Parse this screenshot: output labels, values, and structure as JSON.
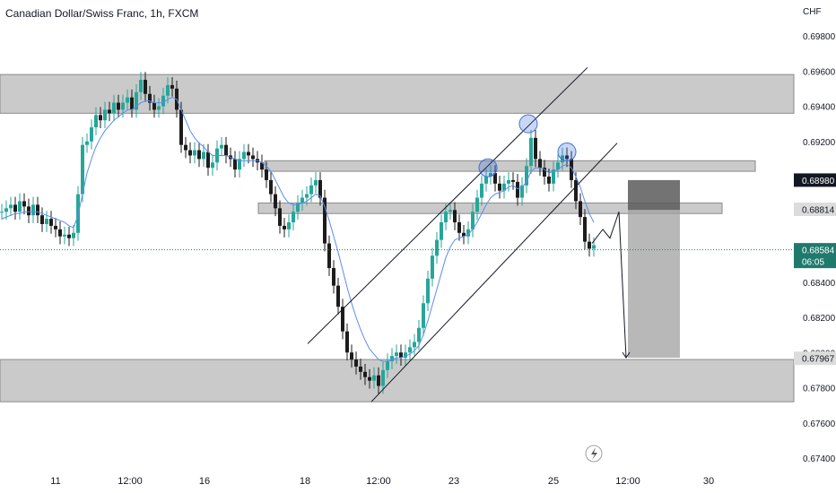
{
  "header": {
    "symbol_title": "Canadian Dollar/Swiss Franc, 1h, FXCM",
    "currency": "CHF"
  },
  "chart_data": {
    "type": "line",
    "title": "Canadian Dollar/Swiss Franc, 1h, FXCM",
    "ylabel": "CHF",
    "ylim": [
      0.673,
      0.699
    ],
    "y_ticks": [
      "0.69800",
      "0.69600",
      "0.69400",
      "0.69200",
      "0.68800",
      "0.68400",
      "0.68200",
      "0.68000",
      "0.67800",
      "0.67600",
      "0.67400"
    ],
    "x_ticks": [
      "11",
      "12:00",
      "16",
      "18",
      "12:00",
      "23",
      "25",
      "12:00",
      "30"
    ],
    "colors": {
      "bull": "#26a69a",
      "bear": "#1c1c1c",
      "ma": "#5b8def",
      "zone": "#9e9e9e",
      "drawing": "#131722",
      "circle": "#3f6fd8",
      "last_price": "#1f7a6c"
    },
    "series": [
      {
        "x": [
          0,
          5,
          10,
          15,
          20,
          25,
          30,
          35,
          40,
          45,
          50,
          55,
          60,
          65,
          70,
          75,
          80,
          85,
          90,
          95,
          100,
          105,
          110,
          115,
          120,
          125,
          130,
          135,
          140,
          145,
          150,
          155,
          160,
          165,
          170,
          175,
          180,
          185,
          190,
          195,
          200,
          205,
          210,
          215,
          220,
          225,
          230,
          235,
          240,
          245,
          250,
          255,
          260,
          265,
          270,
          275,
          280,
          285,
          290,
          295,
          300,
          305,
          310,
          315,
          320,
          325,
          330,
          335,
          340,
          345,
          350,
          355,
          360,
          365,
          370,
          375,
          380,
          385,
          390,
          395,
          400,
          405,
          410,
          415,
          420,
          425,
          430,
          435,
          440,
          445,
          450,
          455,
          460,
          465,
          470,
          475,
          480,
          485,
          490,
          495,
          500,
          505,
          510,
          515,
          520,
          525,
          530,
          535,
          540,
          545,
          550,
          555,
          560,
          565,
          570,
          575,
          580,
          585,
          590,
          595,
          600,
          605,
          610,
          615,
          620,
          625,
          630,
          635,
          640,
          645,
          650,
          655,
          660
        ],
        "values": [
          0.688,
          0.6882,
          0.6884,
          0.688,
          0.6886,
          0.6883,
          0.6878,
          0.6884,
          0.6878,
          0.6873,
          0.6876,
          0.6872,
          0.687,
          0.6866,
          0.6867,
          0.6865,
          0.6868,
          0.689,
          0.6918,
          0.692,
          0.6928,
          0.6935,
          0.6932,
          0.6938,
          0.6936,
          0.6942,
          0.6938,
          0.6942,
          0.6945,
          0.6938,
          0.6948,
          0.6955,
          0.6947,
          0.6942,
          0.6938,
          0.694,
          0.6946,
          0.6952,
          0.695,
          0.6938,
          0.6918,
          0.6915,
          0.6912,
          0.6915,
          0.691,
          0.6914,
          0.6905,
          0.6908,
          0.6916,
          0.6918,
          0.6912,
          0.691,
          0.6904,
          0.691,
          0.6914,
          0.6912,
          0.691,
          0.6908,
          0.6904,
          0.6898,
          0.689,
          0.6882,
          0.6872,
          0.687,
          0.6874,
          0.688,
          0.6885,
          0.6888,
          0.689,
          0.6895,
          0.6898,
          0.6888,
          0.6862,
          0.6848,
          0.6838,
          0.6826,
          0.6812,
          0.68,
          0.6796,
          0.6792,
          0.6789,
          0.6786,
          0.6784,
          0.6787,
          0.6781,
          0.679,
          0.6795,
          0.6798,
          0.68,
          0.6797,
          0.68,
          0.6803,
          0.6806,
          0.6814,
          0.6828,
          0.6842,
          0.6855,
          0.6864,
          0.6874,
          0.688,
          0.6881,
          0.6874,
          0.6868,
          0.6866,
          0.687,
          0.688,
          0.6888,
          0.6896,
          0.69,
          0.6902,
          0.6896,
          0.6892,
          0.6896,
          0.6898,
          0.6897,
          0.6888,
          0.6895,
          0.6906,
          0.6922,
          0.691,
          0.6905,
          0.69,
          0.6896,
          0.6904,
          0.6908,
          0.6912,
          0.691,
          0.6898,
          0.6886,
          0.6877,
          0.6863,
          0.6859,
          0.6861
        ]
      }
    ],
    "ma_values": [
      0.6876,
      0.6877,
      0.6878,
      0.6879,
      0.6879,
      0.688,
      0.688,
      0.688,
      0.688,
      0.6879,
      0.6878,
      0.6877,
      0.6876,
      0.6875,
      0.6874,
      0.6872,
      0.6871,
      0.6878,
      0.689,
      0.6902,
      0.691,
      0.6917,
      0.6922,
      0.6926,
      0.6929,
      0.6932,
      0.6934,
      0.6936,
      0.6938,
      0.6938,
      0.694,
      0.6942,
      0.6943,
      0.6943,
      0.6942,
      0.6942,
      0.6942,
      0.6944,
      0.6945,
      0.6944,
      0.6938,
      0.6932,
      0.6926,
      0.6922,
      0.6919,
      0.6917,
      0.6914,
      0.6912,
      0.6912,
      0.6912,
      0.6912,
      0.6911,
      0.691,
      0.6909,
      0.6909,
      0.6909,
      0.6909,
      0.6909,
      0.6908,
      0.6906,
      0.6903,
      0.6898,
      0.6893,
      0.6888,
      0.6885,
      0.6884,
      0.6884,
      0.6885,
      0.6886,
      0.6888,
      0.689,
      0.6889,
      0.6883,
      0.6875,
      0.6866,
      0.6857,
      0.6847,
      0.6837,
      0.6828,
      0.682,
      0.6813,
      0.6807,
      0.6802,
      0.6799,
      0.6796,
      0.6795,
      0.6795,
      0.6796,
      0.6797,
      0.6797,
      0.6798,
      0.6799,
      0.6801,
      0.6804,
      0.681,
      0.6818,
      0.6827,
      0.6836,
      0.6845,
      0.6854,
      0.686,
      0.6864,
      0.6865,
      0.6866,
      0.6867,
      0.687,
      0.6874,
      0.6879,
      0.6884,
      0.6888,
      0.689,
      0.6891,
      0.6892,
      0.6894,
      0.6895,
      0.6893,
      0.6894,
      0.6897,
      0.6903,
      0.6905,
      0.6905,
      0.6904,
      0.6902,
      0.6903,
      0.6904,
      0.6906,
      0.6907,
      0.6905,
      0.69,
      0.6894,
      0.6886,
      0.6879,
      0.6874
    ],
    "zones": [
      {
        "low": 0.6936,
        "high": 0.6958,
        "x0": 0,
        "x1": 885
      },
      {
        "low": 0.6903,
        "high": 0.6909,
        "x0": 295,
        "x1": 842
      },
      {
        "low": 0.6879,
        "high": 0.6885,
        "x0": 288,
        "x1": 805
      },
      {
        "low": 0.6772,
        "high": 0.6796,
        "x0": 0,
        "x1": 885
      }
    ],
    "channel": {
      "upper": [
        [
          343,
          0.6805
        ],
        [
          655,
          0.6962
        ]
      ],
      "lower": [
        [
          414,
          0.6772
        ],
        [
          688,
          0.6919
        ]
      ]
    },
    "peaks": [
      [
        544,
        0.6905
      ],
      [
        589,
        0.693
      ],
      [
        632,
        0.6914
      ]
    ],
    "projection": [
      [
        660,
        0.6862
      ],
      [
        672,
        0.687
      ],
      [
        680,
        0.6865
      ],
      [
        690,
        0.688
      ],
      [
        698,
        0.6797
      ]
    ],
    "short_box": {
      "x0": 700,
      "x1": 758,
      "entry": 0.6881,
      "stop": 0.6898,
      "target": 0.6797
    },
    "price_labels": [
      {
        "value": "0.68980",
        "y": 0.6898,
        "style": "dark"
      },
      {
        "value": "0.68814",
        "y": 0.68814,
        "style": "gray"
      },
      {
        "value": "0.68584",
        "y": 0.68584,
        "style": "green",
        "sub": "06:05"
      },
      {
        "value": "0.67967",
        "y": 0.67967,
        "style": "gray"
      }
    ]
  }
}
